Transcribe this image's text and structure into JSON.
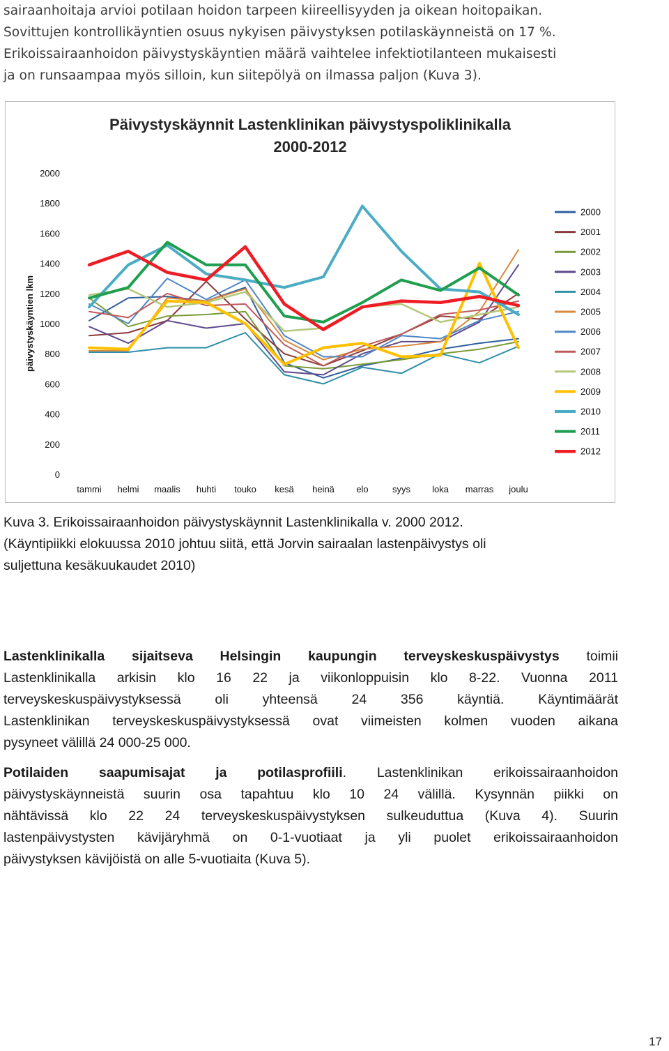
{
  "intro_lines": [
    "sairaanhoitaja arvioi potilaan hoidon tarpeen kiireellisyyden ja oikean hoitopaikan.",
    "Sovittujen kontrollikäyntien osuus nykyisen päivystyksen potilaskäynneistä on 17 %.",
    "Erikoissairaanhoidon päivystyskäyntien määrä vaihtelee infektiotilanteen mukaisesti",
    "ja on runsaampaa myös silloin, kun siitepölyä on ilmassa paljon (Kuva 3)."
  ],
  "chart_data": {
    "type": "line",
    "title": "Päivystyskäynnit Lastenklinikan päivystyspoliklinikalla",
    "subtitle": "2000-2012",
    "ylabel": "päivystyskäyntien lkm",
    "xlabel": "",
    "ylim": [
      0,
      2000
    ],
    "yticks": [
      "0",
      "200",
      "400",
      "600",
      "800",
      "1000",
      "1200",
      "1400",
      "1600",
      "1800",
      "2000"
    ],
    "categories": [
      "tammi",
      "helmi",
      "maalis",
      "huhti",
      "touko",
      "kesä",
      "heinä",
      "elo",
      "syys",
      "loka",
      "marras",
      "joulu"
    ],
    "grid": false,
    "legend_position": "right",
    "series": [
      {
        "name": "2000",
        "color": "#2e5f9e",
        "width": 2,
        "values": [
          1020,
          1170,
          1180,
          1150,
          1240,
          740,
          640,
          720,
          770,
          830,
          870,
          900
        ]
      },
      {
        "name": "2001",
        "color": "#8b3a3a",
        "width": 2,
        "values": [
          920,
          940,
          1020,
          1280,
          1030,
          800,
          720,
          820,
          930,
          1050,
          1030,
          1200
        ]
      },
      {
        "name": "2002",
        "color": "#7a9a3a",
        "width": 2,
        "values": [
          1170,
          980,
          1050,
          1060,
          1080,
          720,
          700,
          730,
          760,
          800,
          830,
          880
        ]
      },
      {
        "name": "2003",
        "color": "#5e4a8c",
        "width": 2,
        "values": [
          980,
          870,
          1020,
          970,
          1000,
          680,
          660,
          800,
          880,
          880,
          1010,
          1390
        ]
      },
      {
        "name": "2004",
        "color": "#2f8fa8",
        "width": 2,
        "values": [
          810,
          810,
          840,
          840,
          940,
          660,
          600,
          710,
          670,
          800,
          740,
          850
        ]
      },
      {
        "name": "2005",
        "color": "#d8893c",
        "width": 2,
        "values": [
          820,
          820,
          1170,
          1150,
          1230,
          890,
          760,
          830,
          850,
          880,
          1080,
          1490
        ]
      },
      {
        "name": "2006",
        "color": "#4f86c6",
        "width": 2,
        "values": [
          1130,
          1000,
          1300,
          1160,
          1290,
          920,
          780,
          780,
          920,
          900,
          1020,
          1080
        ]
      },
      {
        "name": "2007",
        "color": "#c05a5a",
        "width": 2,
        "values": [
          1080,
          1040,
          1200,
          1120,
          1130,
          860,
          720,
          850,
          930,
          1060,
          1090,
          1150
        ]
      },
      {
        "name": "2008",
        "color": "#b5c77a",
        "width": 2.5,
        "values": [
          1190,
          1230,
          1110,
          1140,
          1210,
          950,
          970,
          1110,
          1130,
          1010,
          1060,
          1110
        ]
      },
      {
        "name": "2009",
        "color": "#ffc000",
        "width": 4,
        "values": [
          840,
          830,
          1150,
          1140,
          1000,
          730,
          840,
          870,
          780,
          790,
          1400,
          840
        ]
      },
      {
        "name": "2010",
        "color": "#4bacc6",
        "width": 4,
        "values": [
          1110,
          1390,
          1520,
          1330,
          1290,
          1240,
          1310,
          1780,
          1480,
          1230,
          1210,
          1060
        ]
      },
      {
        "name": "2011",
        "color": "#1e9e4e",
        "width": 4,
        "values": [
          1170,
          1240,
          1540,
          1390,
          1390,
          1050,
          1010,
          1140,
          1290,
          1220,
          1370,
          1190
        ]
      },
      {
        "name": "2012",
        "color": "#ee1c25",
        "width": 4.5,
        "values": [
          1390,
          1480,
          1340,
          1290,
          1510,
          1130,
          960,
          1110,
          1150,
          1140,
          1180,
          1120
        ]
      }
    ]
  },
  "caption_lines": [
    "Kuva 3. Erikoissairaanhoidon päivystyskäynnit Lastenklinikalla v. 2000 2012.",
    "(Käyntipiikki elokuussa 2010 johtuu siitä, että Jorvin sairaalan lastenpäivystys oli",
    "suljettuna kesäkuukaudet 2010)"
  ],
  "para1": {
    "bold_lead": "Lastenklinikalla sijaitseva Helsingin kaupungin terveyskeskuspäivystys",
    "line1_rest": " toimii",
    "lines": [
      "Lastenklinikalla arkisin klo 16 22 ja viikonloppuisin klo 8-22. Vuonna 2011",
      "terveyskeskuspäivystyksessä oli yhteensä 24 356 käyntiä. Käyntimäärät",
      "Lastenklinikan terveyskeskuspäivystyksessä ovat viimeisten kolmen vuoden aikana",
      "pysyneet välillä 24 000-25 000."
    ]
  },
  "para2": {
    "bold_lead": "Potilaiden saapumisajat ja potilasprofiili",
    "line1_rest": ". Lastenklinikan erikoissairaanhoidon",
    "lines": [
      "päivystyskäynneistä suurin osa tapahtuu klo 10 24 välillä. Kysynnän piikki on",
      "nähtävissä klo 22 24 terveyskeskuspäivystyksen sulkeuduttua (Kuva 4). Suurin",
      "lastenpäivystysten kävijäryhmä on 0-1-vuotiaat ja yli puolet erikoissairaanhoidon",
      "päivystyksen kävijöistä on alle 5-vuotiaita (Kuva 5)."
    ]
  },
  "page_number": "17"
}
